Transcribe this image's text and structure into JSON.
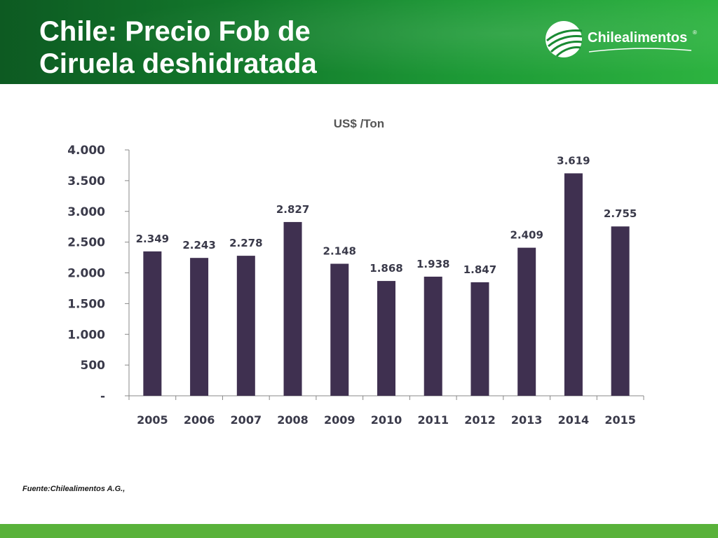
{
  "slide": {
    "title_line1": "Chile: Precio Fob de",
    "title_line2": "Ciruela deshidratada",
    "logo_text": "Chilealimentos",
    "logo_mark": "®",
    "source": "Fuente:Chilealimentos A.G.,"
  },
  "colors": {
    "header_dark": "#0d5a22",
    "header_light": "#2db340",
    "bar": "#3f3050",
    "footer": "#59b23a"
  },
  "chart_data": {
    "type": "bar",
    "title": "US$ /Ton",
    "categories": [
      "2005",
      "2006",
      "2007",
      "2008",
      "2009",
      "2010",
      "2011",
      "2012",
      "2013",
      "2014",
      "2015"
    ],
    "values": [
      2349,
      2243,
      2278,
      2827,
      2148,
      1868,
      1938,
      1847,
      2409,
      3619,
      2755
    ],
    "value_labels": [
      "2.349",
      "2.243",
      "2.278",
      "2.827",
      "2.148",
      "1.868",
      "1.938",
      "1.847",
      "2.409",
      "3.619",
      "2.755"
    ],
    "yticks": [
      0,
      500,
      1000,
      1500,
      2000,
      2500,
      3000,
      3500,
      4000
    ],
    "ytick_labels": [
      "-",
      "500",
      "1.000",
      "1.500",
      "2.000",
      "2.500",
      "3.000",
      "3.500",
      "4.000"
    ],
    "ylim": [
      0,
      4000
    ],
    "grid": false,
    "legend": "none"
  }
}
